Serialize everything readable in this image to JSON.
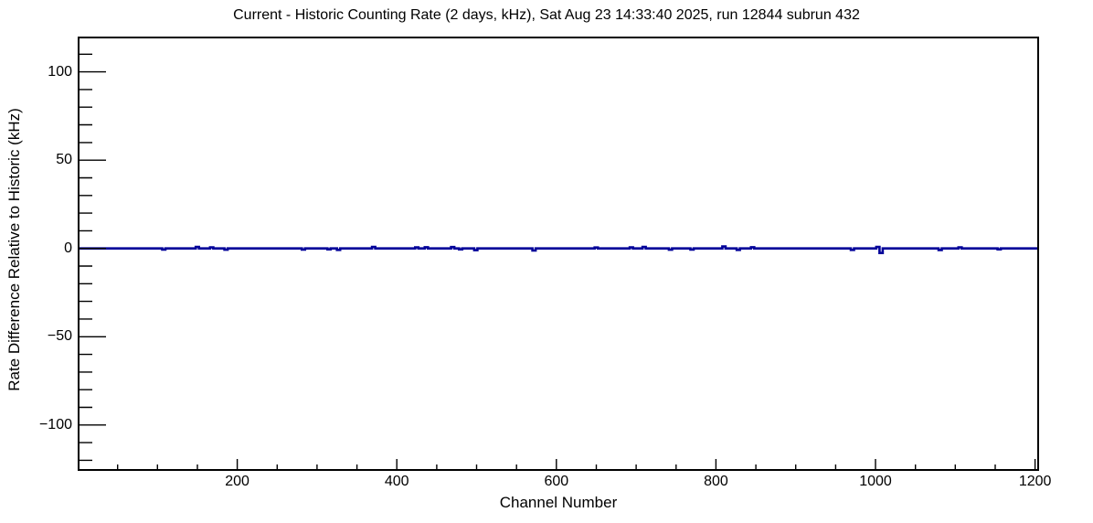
{
  "chart_data": {
    "type": "line",
    "title": "Current - Historic Counting Rate (2 days, kHz), Sat Aug 23 14:33:40 2025, run 12844 subrun 432",
    "xlabel": "Channel Number",
    "ylabel": "Rate Difference Relative to Historic (kHz)",
    "xlim": [
      0,
      1205
    ],
    "ylim": [
      -126,
      120
    ],
    "xticks_major": [
      200,
      400,
      600,
      800,
      1000,
      1200
    ],
    "xtick_minor_step": 50,
    "yticks_major": [
      -100,
      -50,
      0,
      50,
      100
    ],
    "ytick_minor_step": 10,
    "grid": false,
    "legend": false,
    "background_color": "#ffffff",
    "axis_color": "#000000",
    "series": [
      {
        "name": "current-minus-historic-rate",
        "color": "#000099",
        "baseline": 0,
        "spike_half_width_channels": 2,
        "spikes": [
          [
            108,
            -0.6
          ],
          [
            150,
            0.9
          ],
          [
            168,
            0.6
          ],
          [
            186,
            -0.7
          ],
          [
            283,
            -0.6
          ],
          [
            315,
            -0.5
          ],
          [
            327,
            -0.8
          ],
          [
            371,
            0.9
          ],
          [
            425,
            0.6
          ],
          [
            437,
            0.7
          ],
          [
            470,
            0.8
          ],
          [
            480,
            -0.5
          ],
          [
            499,
            -1.0
          ],
          [
            572,
            -1.2
          ],
          [
            650,
            0.5
          ],
          [
            694,
            0.6
          ],
          [
            710,
            0.9
          ],
          [
            743,
            -0.7
          ],
          [
            770,
            -0.6
          ],
          [
            810,
            1.1
          ],
          [
            828,
            -0.8
          ],
          [
            846,
            0.7
          ],
          [
            971,
            -0.8
          ],
          [
            1003,
            0.9
          ],
          [
            1007,
            -2.6
          ],
          [
            1081,
            -0.9
          ],
          [
            1106,
            0.6
          ],
          [
            1155,
            -0.5
          ]
        ]
      }
    ]
  }
}
